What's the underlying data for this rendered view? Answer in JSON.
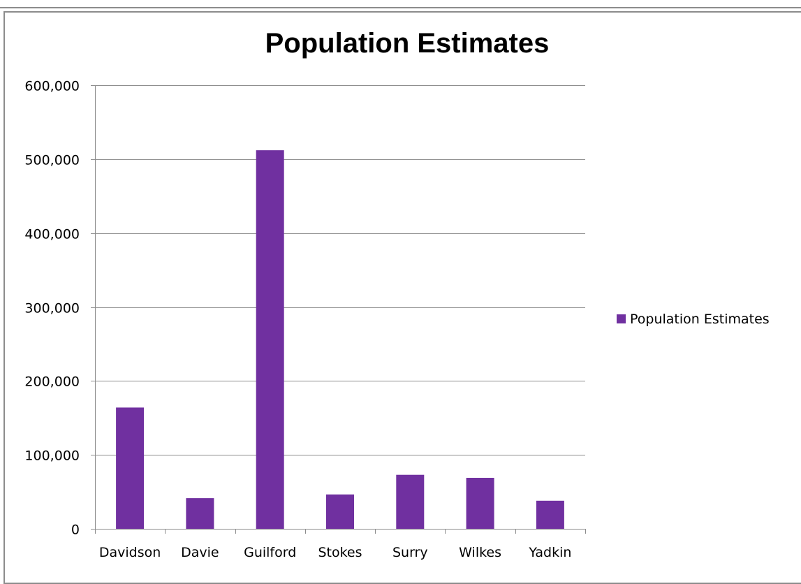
{
  "chart_data": {
    "type": "bar",
    "title": "Population Estimates",
    "xlabel": "",
    "ylabel": "",
    "categories": [
      "Davidson",
      "Davie",
      "Guilford",
      "Stokes",
      "Surry",
      "Wilkes",
      "Yadkin"
    ],
    "series": [
      {
        "name": "Population Estimates",
        "values": [
          164000,
          41500,
          512000,
          46500,
          73000,
          69000,
          38000
        ]
      }
    ],
    "ylim": [
      0,
      600000
    ],
    "yticks": [
      0,
      100000,
      200000,
      300000,
      400000,
      500000,
      600000
    ],
    "ytick_labels": [
      "0",
      "100,000",
      "200,000",
      "300,000",
      "400,000",
      "500,000",
      "600,000"
    ],
    "grid": true,
    "legend_position": "right",
    "colors": {
      "bar": "#7030a0",
      "grid": "#8c8c8c",
      "axis": "#8c8c8c"
    }
  }
}
